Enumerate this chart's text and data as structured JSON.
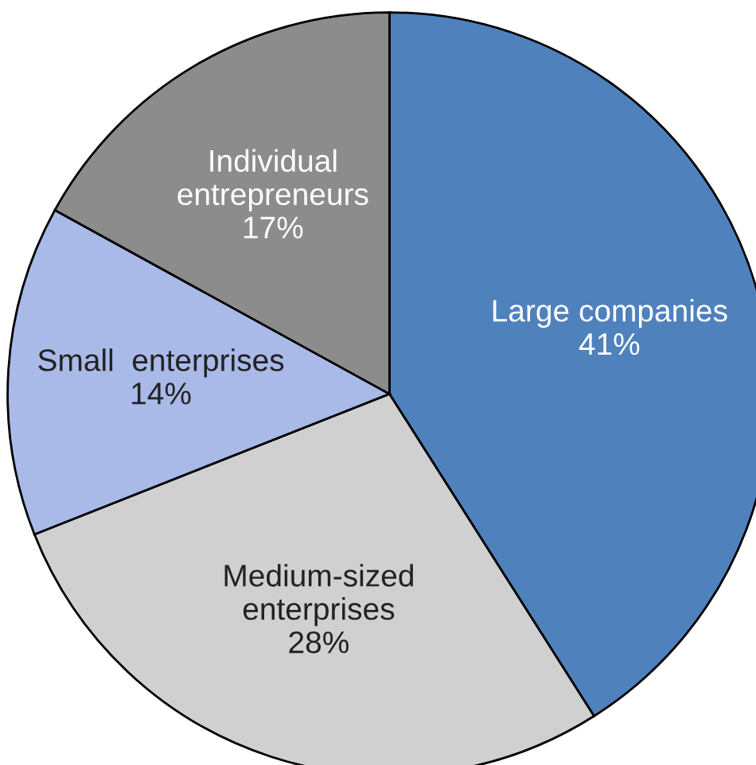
{
  "chart_data": {
    "type": "pie",
    "categories": [
      "Large companies",
      "Medium-sized\nenterprises",
      "Small  enterprises",
      "Individual\nentrepreneurs"
    ],
    "values": [
      41,
      28,
      14,
      17
    ],
    "colors": [
      "#4f81bd",
      "#d0d0d0",
      "#a9b9e8",
      "#8c8c8c"
    ],
    "value_labels": [
      "41%",
      "28%",
      "14%",
      "17%"
    ]
  }
}
